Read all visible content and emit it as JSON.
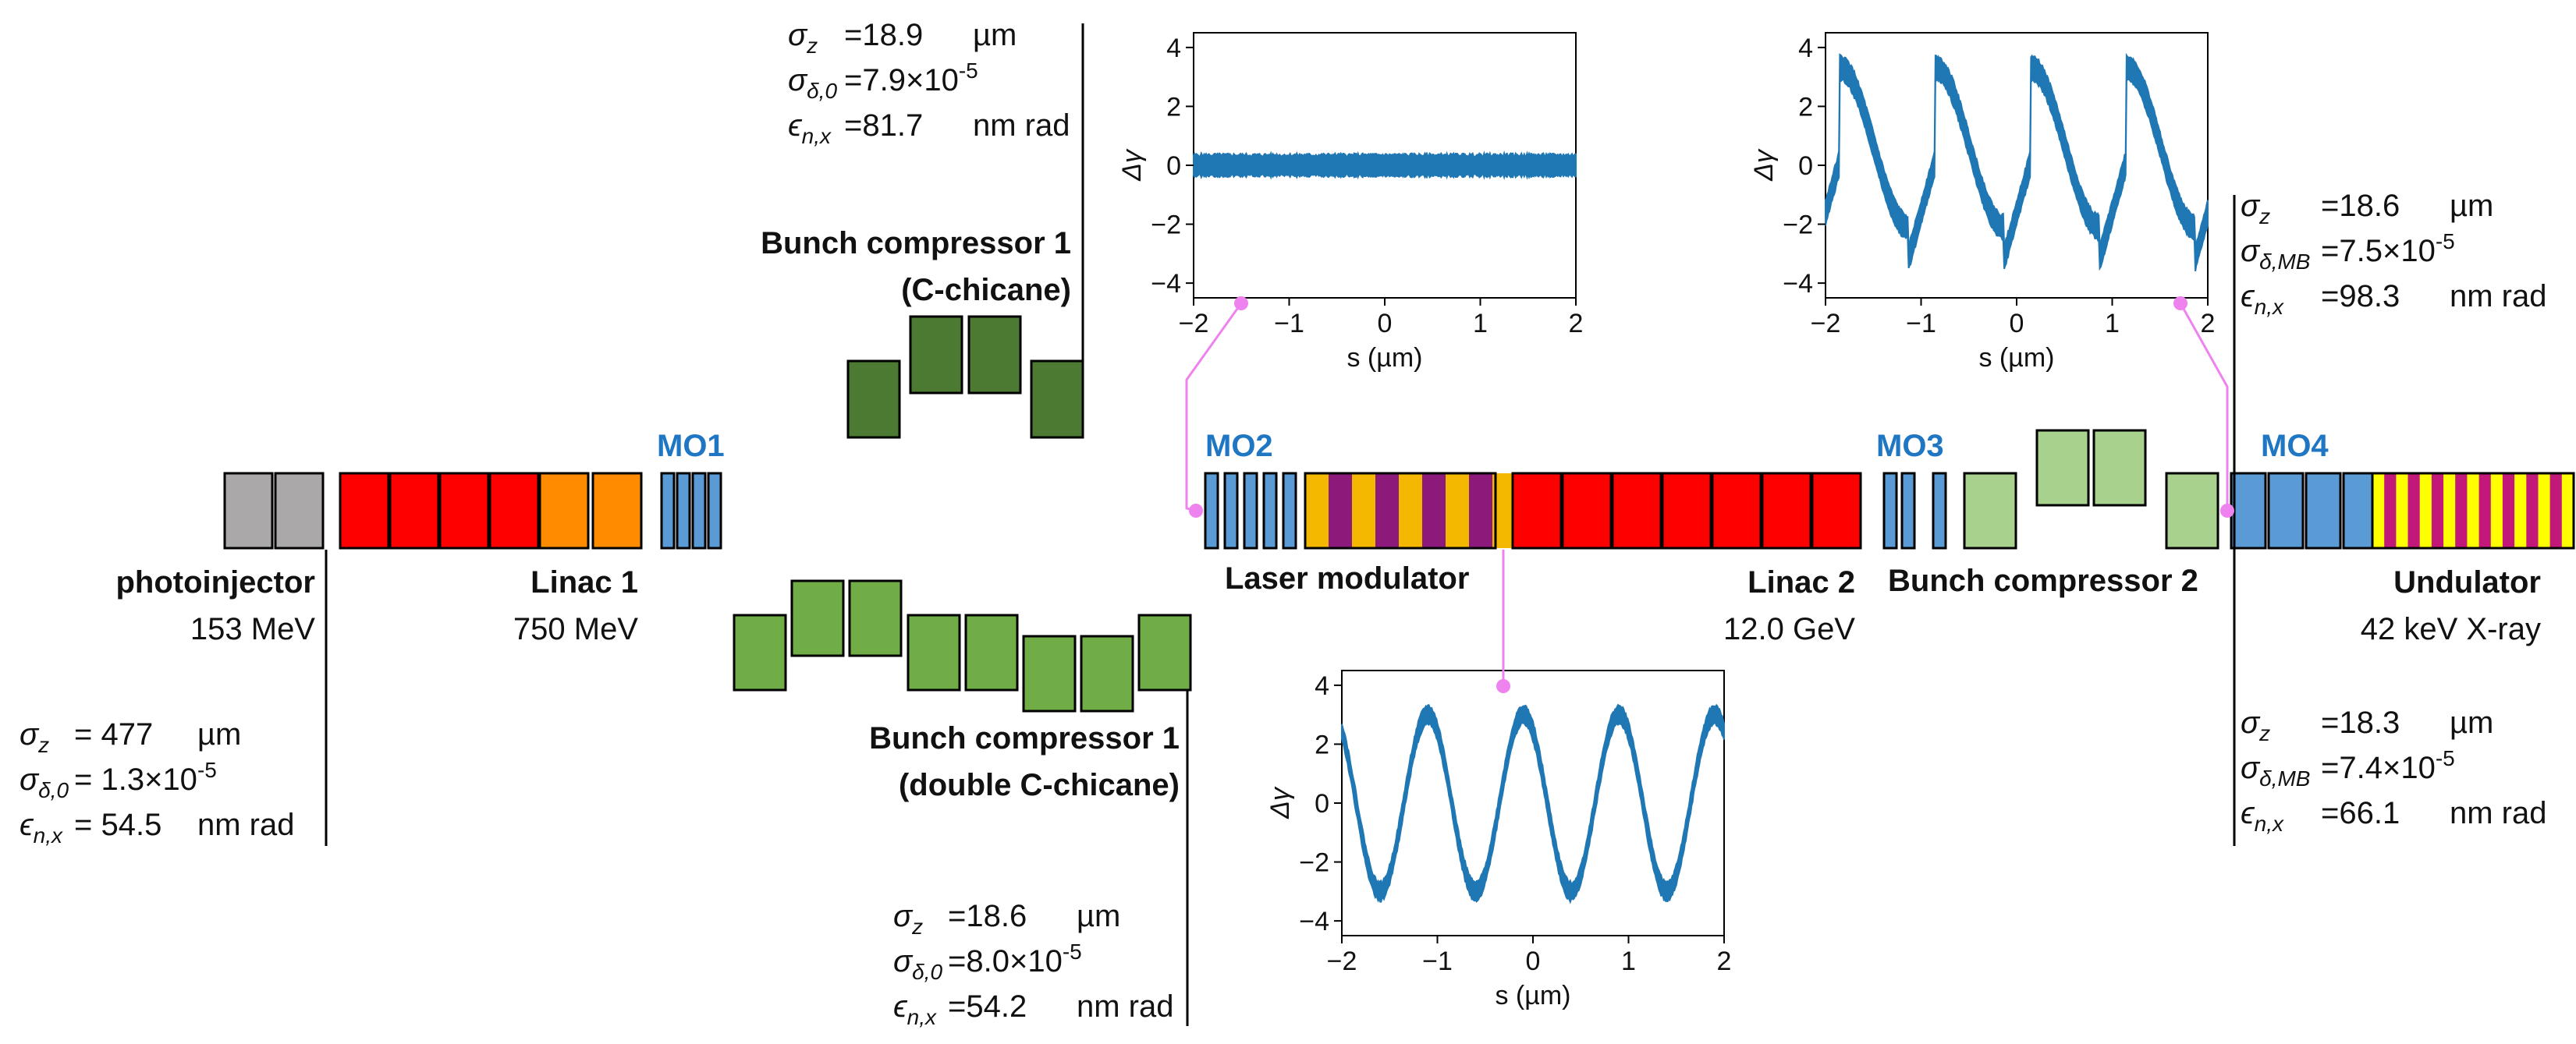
{
  "colors": {
    "gun": "#aaa8a8",
    "linac": "#ff0000",
    "linac1_tail": "#ff8c00",
    "quad": "#5b9bd5",
    "bc_dark": "#4d7a32",
    "bc_mid": "#70ad47",
    "bc_light": "#a9d18e",
    "laser_a": "#f5b800",
    "laser_b": "#8b1a7a",
    "und_a": "#ffff00",
    "und_b": "#c2187a",
    "mo_text": "#1f77c4",
    "marker": "#ee82ee",
    "phase": "#1f77b4"
  },
  "labels": {
    "mo1": "MO1",
    "mo2": "MO2",
    "mo3": "MO3",
    "mo4": "MO4",
    "photoinjector": "photoinjector",
    "photoinjector_energy": "153 MeV",
    "linac1": "Linac 1",
    "linac1_energy": "750 MeV",
    "bc1c_line1": "Bunch compressor 1",
    "bc1c_line2": "(C-chicane)",
    "bc1d_line1": "Bunch compressor 1",
    "bc1d_line2": "(double C-chicane)",
    "laser": "Laser modulator",
    "linac2": "Linac 2",
    "linac2_energy": "12.0 GeV",
    "bc2": "Bunch compressor 2",
    "undulator": "Undulator",
    "undulator_energy": "42 keV X-ray"
  },
  "params": {
    "p1": {
      "sz_sym": "σ",
      "sz_sub": "z",
      "sz_val": "= 477",
      "sz_unit": "µm",
      "sd_sym": "σ",
      "sd_sub": "δ,0",
      "sd_val": "= 1.3×10",
      "sd_exp": "-5",
      "en_sym": "ϵ",
      "en_sub": "n,x",
      "en_val": "= 54.5",
      "en_unit": "nm rad"
    },
    "p2": {
      "sz_sym": "σ",
      "sz_sub": "z",
      "sz_val": "=18.9",
      "sz_unit": "µm",
      "sd_sym": "σ",
      "sd_sub": "δ,0",
      "sd_val": "=7.9×10",
      "sd_exp": "-5",
      "en_sym": "ϵ",
      "en_sub": "n,x",
      "en_val": "=81.7",
      "en_unit": "nm rad"
    },
    "p3": {
      "sz_sym": "σ",
      "sz_sub": "z",
      "sz_val": "=18.6",
      "sz_unit": "µm",
      "sd_sym": "σ",
      "sd_sub": "δ,0",
      "sd_val": "=8.0×10",
      "sd_exp": "-5",
      "en_sym": "ϵ",
      "en_sub": "n,x",
      "en_val": "=54.2",
      "en_unit": "nm rad"
    },
    "p4": {
      "sz_sym": "σ",
      "sz_sub": "z",
      "sz_val": "=18.6",
      "sz_unit": "µm",
      "sd_sym": "σ",
      "sd_sub": "δ,MB",
      "sd_val": "=7.5×10",
      "sd_exp": "-5",
      "en_sym": "ϵ",
      "en_sub": "n,x",
      "en_val": "=98.3",
      "en_unit": "nm rad"
    },
    "p5": {
      "sz_sym": "σ",
      "sz_sub": "z",
      "sz_val": "=18.3",
      "sz_unit": "µm",
      "sd_sym": "σ",
      "sd_sub": "δ,MB",
      "sd_val": "=7.4×10",
      "sd_exp": "-5",
      "en_sym": "ϵ",
      "en_sub": "n,x",
      "en_val": "=66.1",
      "en_unit": "nm rad"
    }
  },
  "chart_data": [
    {
      "type": "scatter",
      "name": "phase space after MO2",
      "xlabel": "s (µm)",
      "ylabel": "Δγ",
      "xlim": [
        -2,
        2
      ],
      "ylim": [
        -4.5,
        4.5
      ],
      "xticks": [
        "−2",
        "−1",
        "0",
        "1",
        "2"
      ],
      "yticks": [
        "4",
        "2",
        "0",
        "−2",
        "−4"
      ],
      "profile": "flat",
      "amplitude": 0,
      "period": 1,
      "spread": 0.35
    },
    {
      "type": "scatter",
      "name": "phase space after laser modulator",
      "xlabel": "s (µm)",
      "ylabel": "Δγ",
      "xlim": [
        -2,
        2
      ],
      "ylim": [
        -4.5,
        4.5
      ],
      "xticks": [
        "−2",
        "−1",
        "0",
        "1",
        "2"
      ],
      "yticks": [
        "4",
        "2",
        "0",
        "−2",
        "−4"
      ],
      "profile": "sine",
      "amplitude": 3,
      "period": 1,
      "spread": 0.3
    },
    {
      "type": "scatter",
      "name": "phase space after bunch compressor 2",
      "xlabel": "s (µm)",
      "ylabel": "Δγ",
      "xlim": [
        -2,
        2
      ],
      "ylim": [
        -4.5,
        4.5
      ],
      "xticks": [
        "−2",
        "−1",
        "0",
        "1",
        "2"
      ],
      "yticks": [
        "4",
        "2",
        "0",
        "−2",
        "−4"
      ],
      "profile": "sawtooth",
      "amplitude": 3,
      "period": 1,
      "spread": 0.4
    }
  ]
}
